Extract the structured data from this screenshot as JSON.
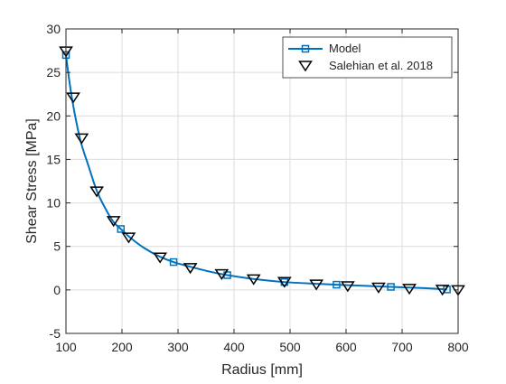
{
  "chart_data": {
    "type": "line",
    "title": "",
    "xlabel": "Radius [mm]",
    "ylabel": "Shear Stress [MPa]",
    "xlim": [
      100,
      800
    ],
    "ylim": [
      -5,
      30
    ],
    "xticks": [
      100,
      200,
      300,
      400,
      500,
      600,
      700,
      800
    ],
    "yticks": [
      -5,
      0,
      5,
      10,
      15,
      20,
      25,
      30
    ],
    "grid": true,
    "legend_position": "top-right",
    "series": [
      {
        "name": "Model",
        "style": "line-with-square-markers",
        "color": "#0072BD",
        "x": [
          100,
          110,
          125,
          140,
          155,
          170,
          185,
          198,
          215,
          240,
          265,
          292,
          320,
          350,
          388,
          430,
          490,
          550,
          583,
          620,
          680,
          740,
          780
        ],
        "y": [
          27.0,
          22.3,
          17.4,
          14.3,
          11.4,
          9.4,
          7.8,
          7.0,
          6.0,
          4.8,
          3.9,
          3.2,
          2.7,
          2.2,
          1.7,
          1.3,
          0.9,
          0.7,
          0.6,
          0.5,
          0.35,
          0.2,
          0.05
        ],
        "marker_x": [
          100,
          198,
          292,
          388,
          490,
          583,
          680,
          780
        ],
        "marker_y": [
          27.0,
          7.0,
          3.2,
          1.7,
          0.9,
          0.6,
          0.35,
          0.05
        ]
      },
      {
        "name": "Salehian et al. 2018",
        "style": "triangle-down-markers",
        "color": "#000000",
        "x": [
          100,
          113,
          128,
          155,
          185,
          212,
          268,
          322,
          378,
          435,
          490,
          547,
          603,
          658,
          713,
          772,
          800
        ],
        "y": [
          27.5,
          22.2,
          17.5,
          11.4,
          8.0,
          6.1,
          3.8,
          2.6,
          1.9,
          1.3,
          1.0,
          0.7,
          0.5,
          0.35,
          0.2,
          0.1,
          0.05
        ]
      }
    ]
  }
}
